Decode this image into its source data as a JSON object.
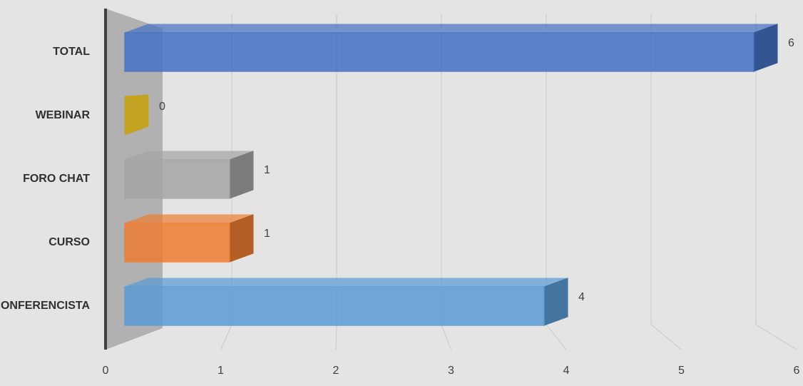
{
  "chart_data": {
    "type": "bar3d_horizontal",
    "categories": [
      "TOTAL",
      "WEBINAR",
      "FORO CHAT",
      "CURSO",
      "CONFERENCISTA"
    ],
    "values": [
      6,
      0,
      1,
      1,
      4
    ],
    "colors": [
      "#4472c4",
      "#c9a000",
      "#a5a5a5",
      "#ed7d31",
      "#5b9bd5"
    ],
    "xlim": [
      0,
      6
    ],
    "xticks": [
      0,
      1,
      2,
      3,
      4,
      5,
      6
    ],
    "grid": true
  }
}
